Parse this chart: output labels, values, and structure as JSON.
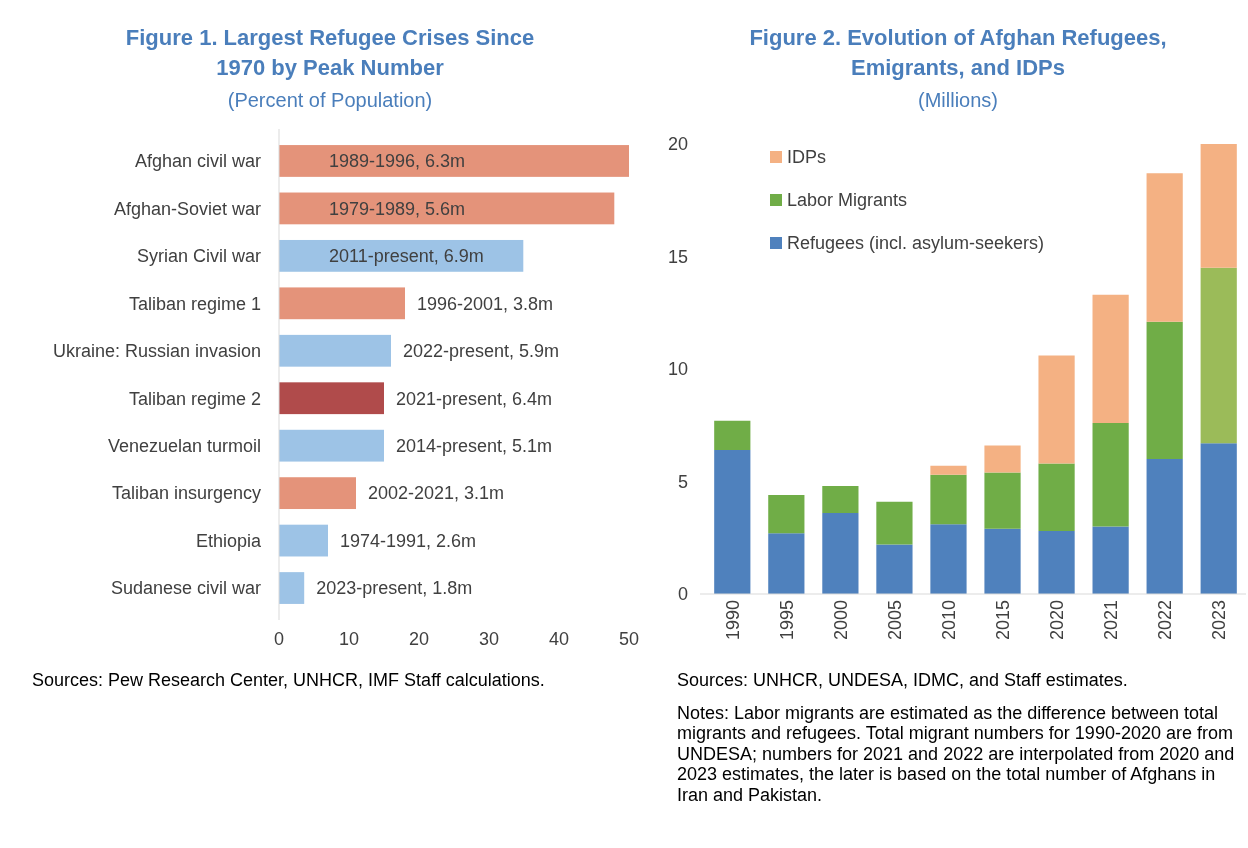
{
  "chart_data": [
    {
      "type": "bar",
      "orientation": "horizontal",
      "title": "Figure 1. Largest Refugee Crises Since 1970 by Peak Number",
      "subtitle": "(Percent of Population)",
      "categories": [
        "Afghan civil war",
        "Afghan-Soviet war",
        "Syrian Civil war",
        "Taliban regime 1",
        "Ukraine: Russian invasion",
        "Taliban regime 2",
        "Venezuelan turmoil",
        "Taliban insurgency",
        "Ethiopia",
        "Sudanese civil war"
      ],
      "values": [
        50,
        47.9,
        34.9,
        18,
        16,
        15,
        15,
        11,
        7,
        3.6
      ],
      "colors": [
        "#e4937a",
        "#e4937a",
        "#9dc3e6",
        "#e4937a",
        "#9dc3e6",
        "#b04b4b",
        "#9dc3e6",
        "#e4937a",
        "#9dc3e6",
        "#9dc3e6"
      ],
      "value_labels": [
        "1989-1996, 6.3m",
        "1979-1989, 5.6m",
        "2011-present, 6.9m",
        "1996-2001, 3.8m",
        "2022-present, 5.9m",
        "2021-present, 6.4m",
        "2014-present, 5.1m",
        "2002-2021, 3.1m",
        "1974-1991, 2.6m",
        "2023-present, 1.8m"
      ],
      "xlim": [
        0,
        50
      ],
      "xticks": [
        0,
        10,
        20,
        30,
        40,
        50
      ],
      "grid": false,
      "legend": false,
      "annotations": [
        "Sources: Pew Research Center, UNHCR, IMF Staff calculations."
      ]
    },
    {
      "type": "bar",
      "stacked": true,
      "title": "Figure 2. Evolution of Afghan Refugees, Emigrants, and IDPs",
      "subtitle": "(Millions)",
      "categories": [
        "1990",
        "1995",
        "2000",
        "2005",
        "2010",
        "2015",
        "2020",
        "2021",
        "2022",
        "2023"
      ],
      "series": [
        {
          "name": "Refugees (incl. asylum-seekers)",
          "color": "#4f81bd",
          "values": [
            6.4,
            2.7,
            3.6,
            2.2,
            3.1,
            2.9,
            2.8,
            3.0,
            6.0,
            6.7
          ]
        },
        {
          "name": "Labor Migrants",
          "color": "#70ad47",
          "colors": [
            "#70ad47",
            "#70ad47",
            "#70ad47",
            "#70ad47",
            "#70ad47",
            "#70ad47",
            "#70ad47",
            "#70ad47",
            "#70ad47",
            "#9bbb59"
          ],
          "values": [
            1.3,
            1.7,
            1.2,
            1.9,
            2.2,
            2.5,
            3.0,
            4.6,
            6.1,
            7.8
          ]
        },
        {
          "name": "IDPs",
          "color": "#f4b183",
          "values": [
            null,
            null,
            null,
            null,
            0.4,
            1.2,
            4.8,
            5.7,
            6.6,
            5.5
          ]
        }
      ],
      "ylim": [
        0,
        20
      ],
      "yticks": [
        0,
        5,
        10,
        15,
        20
      ],
      "grid": false,
      "legend": "top left",
      "annotations": [
        "Sources: UNHCR, UNDESA, IDMC, and Staff estimates.",
        "Notes: Labor migrants are estimated as the difference between total migrants and refugees. Total migrant numbers for 1990-2020 are from UNDESA; numbers for 2021 and 2022 are interpolated from 2020 and 2023 estimates, the later is based on the total number of Afghans in Iran and Pakistan."
      ]
    }
  ]
}
